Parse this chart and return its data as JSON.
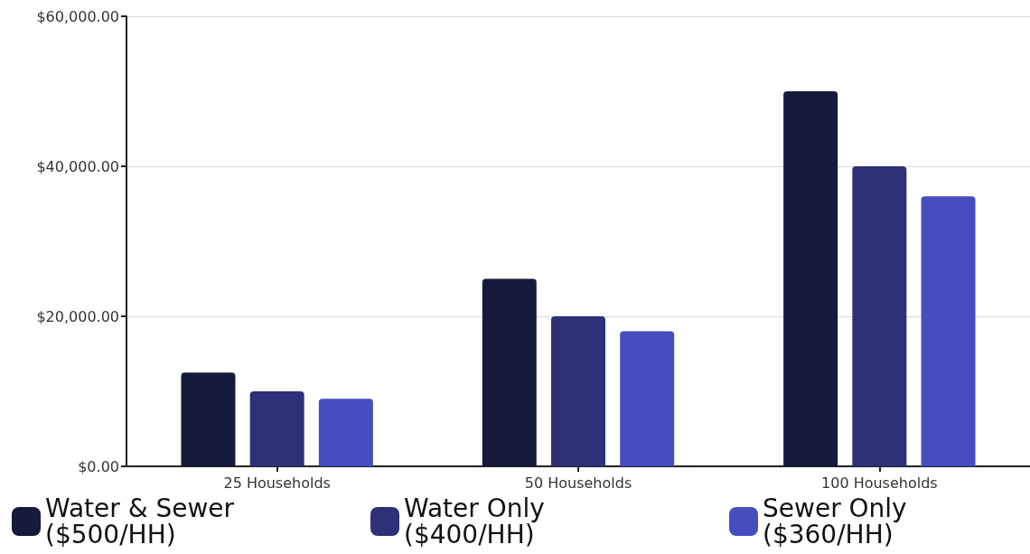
{
  "chart_data": {
    "type": "bar",
    "categories": [
      "25 Households",
      "50 Households",
      "100 Households"
    ],
    "series": [
      {
        "name": "Water & Sewer ($500/HH)",
        "color": "#161a3b",
        "values": [
          12500,
          25000,
          50000
        ]
      },
      {
        "name": "Water Only ($400/HH)",
        "color": "#2e3178",
        "values": [
          10000,
          20000,
          40000
        ]
      },
      {
        "name": "Sewer Only ($360/HH)",
        "color": "#464dbd",
        "values": [
          9000,
          18000,
          36000
        ]
      }
    ],
    "ylim": [
      0,
      60000
    ],
    "yticks": [
      {
        "value": 0,
        "label": "$0.00"
      },
      {
        "value": 20000,
        "label": "$20,000.00"
      },
      {
        "value": 40000,
        "label": "$40,000.00"
      },
      {
        "value": 60000,
        "label": "$60,000.00"
      }
    ],
    "grid": "y",
    "legend": "bottom"
  }
}
